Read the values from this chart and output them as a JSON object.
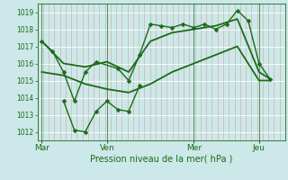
{
  "xlabel": "Pression niveau de la mer( hPa )",
  "bg_color": "#cce8e8",
  "line_color": "#1a6b1a",
  "grid_color_v": "#d4a0a0",
  "grid_color_h": "#ffffff",
  "day_labels": [
    "Mar",
    "Ven",
    "Mer",
    "Jeu"
  ],
  "day_positions": [
    0,
    3,
    7,
    10
  ],
  "xlim": [
    -0.2,
    11.2
  ],
  "ylim": [
    1011.5,
    1019.5
  ],
  "yticks": [
    1012,
    1013,
    1014,
    1015,
    1016,
    1017,
    1018,
    1019
  ],
  "series": [
    {
      "name": "line_with_markers_full",
      "x": [
        0,
        0.5,
        1.0,
        1.5,
        2.0,
        2.5,
        3.5,
        4.0,
        4.5,
        5.0,
        5.5,
        6.0,
        6.5,
        7.0,
        7.5,
        8.0,
        8.5,
        9.0,
        9.5,
        10.0,
        10.5
      ],
      "y": [
        1017.3,
        1016.7,
        1015.5,
        1013.8,
        1015.5,
        1016.1,
        1015.7,
        1015.0,
        1016.5,
        1018.3,
        1018.2,
        1018.1,
        1018.3,
        1018.1,
        1018.3,
        1018.0,
        1018.3,
        1019.1,
        1018.5,
        1016.0,
        1015.1
      ],
      "marker": "D",
      "ms": 2.5,
      "lw": 1.0
    },
    {
      "name": "upper_smooth",
      "x": [
        0,
        1,
        2,
        3,
        4,
        5,
        6,
        7,
        8,
        9,
        10,
        10.5
      ],
      "y": [
        1017.3,
        1016.0,
        1015.8,
        1016.1,
        1015.5,
        1017.3,
        1017.8,
        1018.0,
        1018.2,
        1018.6,
        1015.5,
        1015.1
      ],
      "marker": null,
      "ms": 0,
      "lw": 1.3
    },
    {
      "name": "lower_smooth",
      "x": [
        0,
        1,
        2,
        3,
        4,
        5,
        6,
        7,
        8,
        9,
        10,
        10.5
      ],
      "y": [
        1015.5,
        1015.3,
        1014.8,
        1014.5,
        1014.3,
        1014.8,
        1015.5,
        1016.0,
        1016.5,
        1017.0,
        1015.0,
        1015.0
      ],
      "marker": null,
      "ms": 0,
      "lw": 1.3
    },
    {
      "name": "lower_zigzag_markers",
      "x": [
        1.0,
        1.5,
        2.0,
        2.5,
        3.0,
        3.5,
        4.0,
        4.5
      ],
      "y": [
        1013.8,
        1012.1,
        1012.0,
        1013.2,
        1013.8,
        1013.3,
        1013.2,
        1014.7
      ],
      "marker": "D",
      "ms": 2.5,
      "lw": 1.0
    }
  ]
}
